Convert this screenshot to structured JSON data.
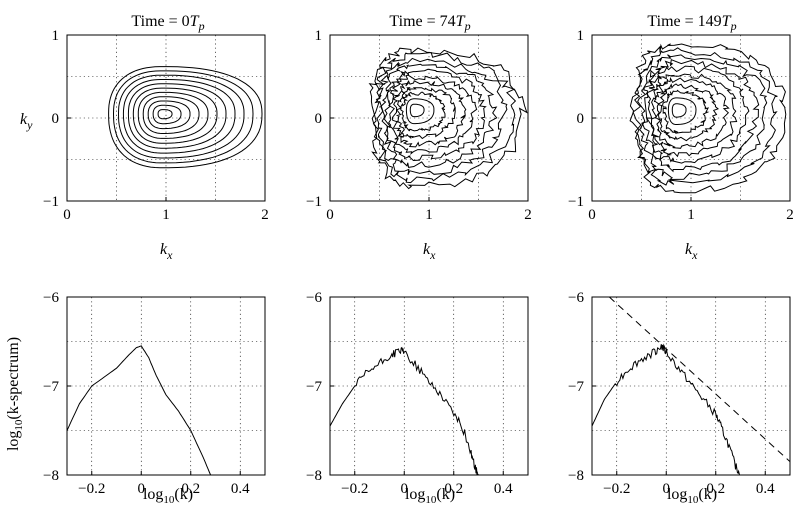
{
  "figure": {
    "titles": [
      {
        "label": "Time = ",
        "number": "0",
        "unit": "T",
        "sub": "p"
      },
      {
        "label": "Time = ",
        "number": "74",
        "unit": "T",
        "sub": "p"
      },
      {
        "label": "Time = ",
        "number": "149",
        "unit": "T",
        "sub": "p"
      }
    ],
    "contour_xlabel": {
      "main": "k",
      "sub": "x"
    },
    "contour_ylabel": {
      "main": "k",
      "sub": "y"
    },
    "spectrum_xlabel": {
      "pre": "log",
      "sub": "10",
      "post": "(k)"
    },
    "spectrum_ylabel": {
      "pre": "log",
      "sub": "10",
      "post": "(k-spectrum)"
    }
  },
  "chart_data": [
    {
      "type": "contour",
      "panel": "top-left",
      "title": "Time = 0Tp",
      "xlabel": "kx",
      "ylabel": "ky",
      "xlim": [
        0,
        2
      ],
      "ylim": [
        -1,
        1
      ],
      "xticks": [
        "0",
        "1",
        "2"
      ],
      "yticks": [
        "1",
        "0",
        "−1"
      ],
      "grid": true,
      "peak": [
        0.97,
        0.05
      ],
      "outer_extent": {
        "kx_min": 0.42,
        "kx_max": 1.97,
        "ky_min": -0.6,
        "ky_max": 0.62
      },
      "levels": 11,
      "texture": "smooth"
    },
    {
      "type": "contour",
      "panel": "top-middle",
      "title": "Time = 74Tp",
      "xlabel": "kx",
      "ylabel": "",
      "xlim": [
        0,
        2
      ],
      "ylim": [
        -1,
        1
      ],
      "xticks": [
        "0",
        "1",
        "2"
      ],
      "yticks": [
        "1",
        "0",
        "−1"
      ],
      "grid": true,
      "peak": [
        0.85,
        0.1
      ],
      "outer_extent": {
        "kx_min": 0.42,
        "kx_max": 1.95,
        "ky_min": -0.82,
        "ky_max": 0.82
      },
      "levels": 11,
      "texture": "noisy"
    },
    {
      "type": "contour",
      "panel": "top-right",
      "title": "Time = 149Tp",
      "xlabel": "kx",
      "ylabel": "",
      "xlim": [
        0,
        2
      ],
      "ylim": [
        -1,
        1
      ],
      "xticks": [
        "0",
        "1",
        "2"
      ],
      "yticks": [
        "1",
        "0",
        "−1"
      ],
      "grid": true,
      "peak": [
        0.85,
        0.1
      ],
      "outer_extent": {
        "kx_min": 0.42,
        "kx_max": 1.95,
        "ky_min": -0.88,
        "ky_max": 0.88
      },
      "levels": 11,
      "texture": "noisy"
    },
    {
      "type": "line",
      "panel": "bottom-left",
      "xlabel": "log10(k)",
      "ylabel": "log10(k-spectrum)",
      "xlim": [
        -0.3,
        0.5
      ],
      "ylim": [
        -8,
        -6
      ],
      "xticks": [
        "−0.2",
        "0",
        "0.2",
        "0.4"
      ],
      "yticks": [
        "−6",
        "−7",
        "−8"
      ],
      "grid": true,
      "series": [
        {
          "x": [
            -0.3,
            -0.25,
            -0.2,
            -0.15,
            -0.1,
            -0.05,
            -0.02,
            0.0,
            0.03,
            0.06,
            0.1,
            0.15,
            0.2,
            0.25,
            0.28
          ],
          "y": [
            -7.5,
            -7.2,
            -7.0,
            -6.9,
            -6.8,
            -6.65,
            -6.57,
            -6.55,
            -6.68,
            -6.88,
            -7.1,
            -7.28,
            -7.5,
            -7.8,
            -8.0
          ]
        }
      ]
    },
    {
      "type": "line",
      "panel": "bottom-middle",
      "xlabel": "log10(k)",
      "ylabel": "",
      "xlim": [
        -0.3,
        0.5
      ],
      "ylim": [
        -8,
        -6
      ],
      "xticks": [
        "−0.2",
        "0",
        "0.2",
        "0.4"
      ],
      "yticks": [
        "−6",
        "−7",
        "−8"
      ],
      "grid": true,
      "series": [
        {
          "x": [
            -0.3,
            -0.25,
            -0.2,
            -0.15,
            -0.1,
            -0.05,
            -0.02,
            0.0,
            0.05,
            0.1,
            0.15,
            0.2,
            0.24,
            0.27,
            0.29,
            0.3
          ],
          "y": [
            -7.45,
            -7.2,
            -7.0,
            -6.85,
            -6.75,
            -6.65,
            -6.6,
            -6.62,
            -6.78,
            -6.95,
            -7.1,
            -7.3,
            -7.5,
            -7.75,
            -7.95,
            -8.0
          ]
        }
      ]
    },
    {
      "type": "line",
      "panel": "bottom-right",
      "xlabel": "log10(k)",
      "ylabel": "",
      "xlim": [
        -0.3,
        0.5
      ],
      "ylim": [
        -8,
        -6
      ],
      "xticks": [
        "−0.2",
        "0",
        "0.2",
        "0.4"
      ],
      "yticks": [
        "−6",
        "−7",
        "−8"
      ],
      "grid": true,
      "series": [
        {
          "x": [
            -0.3,
            -0.25,
            -0.2,
            -0.15,
            -0.1,
            -0.05,
            -0.02,
            0.0,
            0.05,
            0.1,
            0.15,
            0.2,
            0.22,
            0.25,
            0.28,
            0.3
          ],
          "y": [
            -7.45,
            -7.15,
            -6.95,
            -6.8,
            -6.7,
            -6.62,
            -6.55,
            -6.62,
            -6.8,
            -6.98,
            -7.15,
            -7.32,
            -7.45,
            -7.65,
            -7.9,
            -8.0
          ]
        },
        {
          "x": [
            -0.23,
            0.5
          ],
          "y": [
            -6.0,
            -7.85
          ],
          "style": "dashed"
        }
      ]
    }
  ]
}
